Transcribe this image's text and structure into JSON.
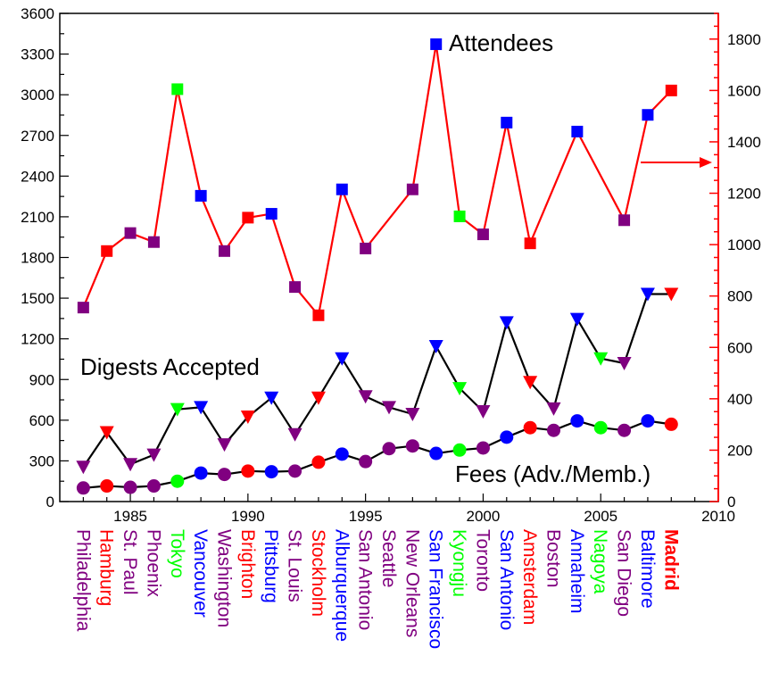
{
  "chart_data": {
    "type": "line",
    "x_axis": {
      "range": [
        1982,
        2010
      ],
      "ticks": [
        1985,
        1990,
        1995,
        2000,
        2005,
        2010
      ],
      "tick_labels": [
        "1985",
        "1990",
        "1995",
        "2000",
        "2005",
        "2010"
      ]
    },
    "y_left": {
      "range": [
        0,
        3600
      ],
      "ticks": [
        0,
        300,
        600,
        900,
        1200,
        1500,
        1800,
        2100,
        2400,
        2700,
        3000,
        3300,
        3600
      ],
      "tick_labels": [
        "0",
        "300",
        "600",
        "900",
        "1200",
        "1500",
        "1800",
        "2100",
        "2400",
        "2700",
        "3000",
        "3300",
        "3600"
      ]
    },
    "y_right": {
      "range": [
        0,
        1900
      ],
      "ticks": [
        0,
        200,
        400,
        600,
        800,
        1000,
        1200,
        1400,
        1600,
        1800
      ],
      "tick_labels": [
        "0",
        "200",
        "400",
        "600",
        "800",
        "1000",
        "1200",
        "1400",
        "1600",
        "1800"
      ],
      "color": "#ff0000"
    },
    "series": [
      {
        "name": "Attendees",
        "axis": "right",
        "line_color": "#ff0000",
        "marker": "square",
        "x": [
          1983,
          1984,
          1985,
          1986,
          1987,
          1988,
          1989,
          1990,
          1991,
          1992,
          1993,
          1994,
          1995,
          1997,
          1998,
          1999,
          2000,
          2001,
          2002,
          2004,
          2006,
          2007,
          2008
        ],
        "values": [
          755,
          975,
          1045,
          1010,
          1605,
          1190,
          975,
          1105,
          1120,
          835,
          725,
          1215,
          985,
          1215,
          1780,
          1110,
          1040,
          1475,
          1005,
          1440,
          1095,
          1505,
          1600
        ]
      },
      {
        "name": "Digests Accepted",
        "axis": "left",
        "line_color": "#000000",
        "marker": "triangle-down",
        "x": [
          1983,
          1984,
          1985,
          1986,
          1987,
          1988,
          1989,
          1990,
          1991,
          1992,
          1993,
          1994,
          1995,
          1996,
          1997,
          1998,
          1999,
          2000,
          2001,
          2002,
          2003,
          2004,
          2005,
          2006,
          2007,
          2008
        ],
        "values": [
          255,
          510,
          275,
          345,
          680,
          695,
          420,
          625,
          765,
          495,
          765,
          1055,
          775,
          695,
          645,
          1145,
          835,
          665,
          1320,
          880,
          685,
          1345,
          1055,
          1020,
          1530,
          1530
        ]
      },
      {
        "name": "Fees (Adv./Memb.)",
        "axis": "left",
        "line_color": "#000000",
        "marker": "circle",
        "x": [
          1983,
          1984,
          1985,
          1986,
          1987,
          1988,
          1989,
          1990,
          1991,
          1992,
          1993,
          1994,
          1995,
          1996,
          1997,
          1998,
          1999,
          2000,
          2001,
          2002,
          2003,
          2004,
          2005,
          2006,
          2007,
          2008
        ],
        "values": [
          100,
          115,
          105,
          115,
          150,
          210,
          200,
          225,
          220,
          225,
          290,
          350,
          295,
          390,
          410,
          355,
          380,
          395,
          475,
          545,
          525,
          595,
          545,
          525,
          595,
          570
        ]
      }
    ],
    "annotation_arrow": {
      "from_series": "Attendees",
      "points_to": "right axis",
      "color": "#ff0000"
    },
    "series_labels": {
      "attendees": "Attendees",
      "digests": "Digests Accepted",
      "fees": "Fees (Adv./Memb.)"
    },
    "colors": {
      "purple": "#800080",
      "red": "#ff0000",
      "blue": "#0000ff",
      "green": "#00ff00"
    },
    "cities": [
      {
        "name": "Philadelphia",
        "year": 1983,
        "color": "purple",
        "bold": false
      },
      {
        "name": "Hamburg",
        "year": 1984,
        "color": "red",
        "bold": false
      },
      {
        "name": "St. Paul",
        "year": 1985,
        "color": "purple",
        "bold": false
      },
      {
        "name": "Phoenix",
        "year": 1986,
        "color": "purple",
        "bold": false
      },
      {
        "name": "Tokyo",
        "year": 1987,
        "color": "green",
        "bold": false
      },
      {
        "name": "Vancouver",
        "year": 1988,
        "color": "blue",
        "bold": false
      },
      {
        "name": "Washington",
        "year": 1989,
        "color": "purple",
        "bold": false
      },
      {
        "name": "Brighton",
        "year": 1990,
        "color": "red",
        "bold": false
      },
      {
        "name": "Pittsburg",
        "year": 1991,
        "color": "blue",
        "bold": false
      },
      {
        "name": "St. Louis",
        "year": 1992,
        "color": "purple",
        "bold": false
      },
      {
        "name": "Stockholm",
        "year": 1993,
        "color": "red",
        "bold": false
      },
      {
        "name": "Alburquerque",
        "year": 1994,
        "color": "blue",
        "bold": false
      },
      {
        "name": "San Antonio",
        "year": 1995,
        "color": "purple",
        "bold": false
      },
      {
        "name": "Seattle",
        "year": 1996,
        "color": "purple",
        "bold": false
      },
      {
        "name": "New Orleans",
        "year": 1997,
        "color": "purple",
        "bold": false
      },
      {
        "name": "San Francisco",
        "year": 1998,
        "color": "blue",
        "bold": false
      },
      {
        "name": "Kyongju",
        "year": 1999,
        "color": "green",
        "bold": false
      },
      {
        "name": "Toronto",
        "year": 2000,
        "color": "purple",
        "bold": false
      },
      {
        "name": "San Antonio",
        "year": 2001,
        "color": "blue",
        "bold": false
      },
      {
        "name": "Amsterdam",
        "year": 2002,
        "color": "red",
        "bold": false
      },
      {
        "name": "Boston",
        "year": 2003,
        "color": "purple",
        "bold": false
      },
      {
        "name": "Annaheim",
        "year": 2004,
        "color": "blue",
        "bold": false
      },
      {
        "name": "Nagoya",
        "year": 2005,
        "color": "green",
        "bold": false
      },
      {
        "name": "San Diego",
        "year": 2006,
        "color": "purple",
        "bold": false
      },
      {
        "name": "Baltimore",
        "year": 2007,
        "color": "blue",
        "bold": false
      },
      {
        "name": "Madrid",
        "year": 2008,
        "color": "red",
        "bold": true
      }
    ]
  }
}
